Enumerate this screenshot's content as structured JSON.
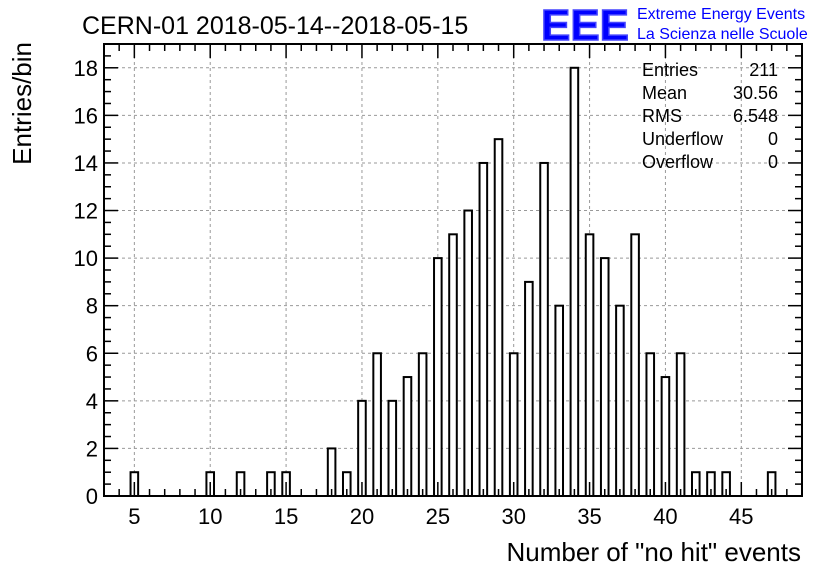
{
  "title": "CERN-01 2018-05-14--2018-05-15",
  "logo": {
    "letters": "EEE",
    "line1": "Extreme Energy Events",
    "line2": "La Scienza nelle Scuole",
    "color": "#0000ff"
  },
  "stats": {
    "rows": [
      {
        "label": "Entries",
        "value": "211"
      },
      {
        "label": "Mean",
        "value": "30.56"
      },
      {
        "label": "RMS",
        "value": "6.548"
      },
      {
        "label": "Underflow",
        "value": "0"
      },
      {
        "label": "Overflow",
        "value": "0"
      }
    ]
  },
  "chart_data": {
    "type": "bar",
    "title": "CERN-01 2018-05-14--2018-05-15",
    "xlabel": "Number of \"no hit\" events",
    "ylabel": "Entries/bin",
    "xlim": [
      3,
      49
    ],
    "ylim": [
      0,
      19
    ],
    "grid": true,
    "xticks": [
      5,
      10,
      15,
      20,
      25,
      30,
      35,
      40,
      45
    ],
    "yticks": [
      0,
      2,
      4,
      6,
      8,
      10,
      12,
      14,
      16,
      18
    ],
    "x": [
      5,
      10,
      12,
      14,
      15,
      18,
      19,
      20,
      21,
      22,
      23,
      24,
      25,
      26,
      27,
      28,
      29,
      30,
      31,
      32,
      33,
      34,
      35,
      36,
      37,
      38,
      39,
      40,
      41,
      42,
      43,
      44,
      47
    ],
    "values": [
      1,
      1,
      1,
      1,
      1,
      2,
      1,
      4,
      6,
      4,
      5,
      6,
      10,
      11,
      12,
      14,
      15,
      6,
      9,
      14,
      8,
      18,
      11,
      10,
      8,
      11,
      6,
      5,
      6,
      1,
      1,
      1,
      1
    ],
    "bar_color": "#000000"
  }
}
